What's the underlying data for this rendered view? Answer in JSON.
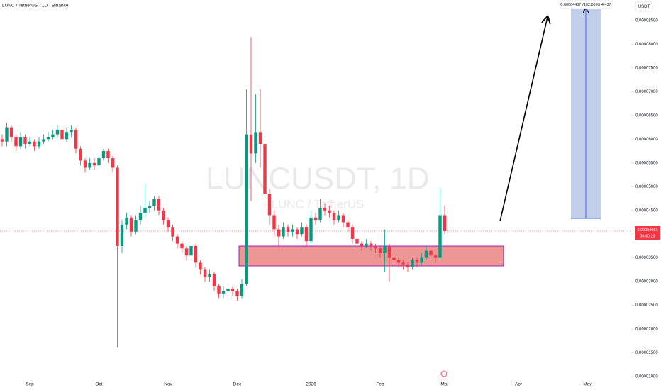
{
  "chart_data": {
    "type": "candlestick",
    "title": "LUNC / TetherUS · 1D · Binance",
    "watermark": "LUNCUSDT, 1D",
    "watermark_subtitle": "LUNC / TetherUS",
    "currency": "USDT",
    "last_price": 4.063e-05,
    "countdown": "06:40:29",
    "projection_label": "0.00004437 (102.80%) 4,437",
    "up_color": "#089981",
    "down_color": "#f23645",
    "ylim": [
      1e-05,
      8.933e-05
    ],
    "yticks": [
      {
        "value": 1e-05,
        "label": "0.00001000"
      },
      {
        "value": 1.5e-05,
        "label": "0.00001500"
      },
      {
        "value": 2e-05,
        "label": "0.00002000"
      },
      {
        "value": 2.5e-05,
        "label": "0.00002500"
      },
      {
        "value": 3e-05,
        "label": "0.00003000"
      },
      {
        "value": 3.5e-05,
        "label": "0.00003500"
      },
      {
        "value": 4e-05,
        "label": "0.00004000"
      },
      {
        "value": 4.5e-05,
        "label": "0.00004500"
      },
      {
        "value": 5e-05,
        "label": "0.00005000"
      },
      {
        "value": 5.5e-05,
        "label": "0.00005500"
      },
      {
        "value": 6e-05,
        "label": "0.00006000"
      },
      {
        "value": 6.5e-05,
        "label": "0.00006500"
      },
      {
        "value": 7e-05,
        "label": "0.00007000"
      },
      {
        "value": 7.5e-05,
        "label": "0.00007500"
      },
      {
        "value": 8e-05,
        "label": "0.00008000"
      },
      {
        "value": 8.5e-05,
        "label": "0.00008500"
      }
    ],
    "categories": [
      null,
      null,
      null,
      null,
      null,
      null,
      "Sep",
      null,
      null,
      null,
      null,
      null,
      null,
      null,
      null,
      null,
      null,
      null,
      null,
      null,
      null,
      "Oct",
      null,
      null,
      null,
      null,
      null,
      null,
      null,
      null,
      null,
      null,
      null,
      null,
      null,
      null,
      "Nov",
      null,
      null,
      null,
      null,
      null,
      null,
      null,
      null,
      null,
      null,
      null,
      null,
      null,
      null,
      "Dec",
      null,
      null,
      null,
      null,
      null,
      null,
      null,
      null,
      null,
      null,
      null,
      null,
      null,
      null,
      null,
      "2026",
      null,
      null,
      null,
      null,
      null,
      null,
      null,
      null,
      null,
      null,
      null,
      null,
      null,
      null,
      "Feb",
      null,
      null,
      null,
      null,
      null,
      null,
      null,
      null,
      null,
      null,
      null,
      null,
      null,
      "Mar",
      null,
      null,
      null,
      null,
      null,
      null,
      null,
      null,
      null,
      null,
      null,
      null,
      null,
      null,
      null,
      "Apr",
      null,
      null,
      null,
      null,
      null,
      null,
      null,
      null,
      null,
      null,
      null,
      null,
      null,
      null,
      "May",
      null,
      null,
      null,
      null,
      null,
      null,
      null,
      null,
      null,
      null,
      null,
      null,
      null,
      null,
      null
    ],
    "open": [
      6e-05,
      5.95e-05,
      6.25e-05,
      6.05e-05,
      5.85e-05,
      6.05e-05,
      5.9e-05,
      5.95e-05,
      5.85e-05,
      5.95e-05,
      6e-05,
      6.05e-05,
      6.1e-05,
      6.2e-05,
      6e-05,
      6.15e-05,
      6.2e-05,
      5.8e-05,
      5.55e-05,
      5.4e-05,
      5.5e-05,
      5.45e-05,
      5.6e-05,
      5.75e-05,
      5.6e-05,
      5.4e-05,
      3.75e-05,
      4.2e-05,
      4.35e-05,
      4.05e-05,
      4.3e-05,
      4.45e-05,
      4.55e-05,
      4.6e-05,
      4.75e-05,
      4.5e-05,
      4.3e-05,
      4.15e-05,
      3.95e-05,
      3.8e-05,
      3.7e-05,
      3.55e-05,
      3.75e-05,
      3.4e-05,
      3.25e-05,
      3.1e-05,
      3.15e-05,
      2.9e-05,
      2.75e-05,
      2.8e-05,
      2.85e-05,
      2.8e-05,
      2.7e-05,
      2.95e-05,
      6.1e-05,
      5.7e-05,
      6.15e-05,
      5.9e-05,
      4.85e-05,
      4.4e-05,
      4.1e-05,
      3.95e-05,
      4.15e-05,
      4.05e-05,
      4.1e-05,
      4e-05,
      4.15e-05,
      3.85e-05,
      4.35e-05,
      4.3e-05,
      4.55e-05,
      4.5e-05,
      4.45e-05,
      4.3e-05,
      4.4e-05,
      4.25e-05,
      4.15e-05,
      3.9e-05,
      3.8e-05,
      3.75e-05,
      3.8e-05,
      3.75e-05,
      3.7e-05,
      3.6e-05,
      3.75e-05,
      3.5e-05,
      3.45e-05,
      3.4e-05,
      3.35e-05,
      3.3e-05,
      3.45e-05,
      3.4e-05,
      3.5e-05,
      3.65e-05,
      3.55e-05,
      3.5e-05,
      4.4e-05,
      null,
      null,
      null,
      null,
      null,
      null,
      null,
      null,
      null,
      null,
      null,
      null,
      null,
      null,
      null,
      null,
      null,
      null,
      null,
      null,
      null,
      null,
      null,
      null,
      null,
      null,
      null,
      null,
      null,
      null,
      null,
      null,
      null,
      null,
      null,
      null,
      null,
      null,
      null,
      null,
      null,
      null,
      null,
      null,
      null,
      null
    ],
    "high": [
      6.1e-05,
      6.35e-05,
      6.3e-05,
      6.1e-05,
      6.15e-05,
      6.1e-05,
      6.05e-05,
      6e-05,
      6.05e-05,
      6.1e-05,
      6.15e-05,
      6.2e-05,
      6.3e-05,
      6.25e-05,
      6.25e-05,
      6.3e-05,
      6.25e-05,
      5.85e-05,
      5.6e-05,
      5.6e-05,
      5.6e-05,
      5.7e-05,
      5.8e-05,
      5.8e-05,
      5.65e-05,
      5.45e-05,
      4.3e-05,
      4.45e-05,
      4.4e-05,
      4.4e-05,
      4.6e-05,
      5.05e-05,
      4.7e-05,
      4.8e-05,
      4.8e-05,
      4.55e-05,
      4.35e-05,
      4.2e-05,
      4e-05,
      3.85e-05,
      3.75e-05,
      3.85e-05,
      3.8e-05,
      3.45e-05,
      3.3e-05,
      3.25e-05,
      3.2e-05,
      2.95e-05,
      2.9e-05,
      2.95e-05,
      2.9e-05,
      2.85e-05,
      3.05e-05,
      7.05e-05,
      8.15e-05,
      6.95e-05,
      7.05e-05,
      6e-05,
      4.95e-05,
      4.5e-05,
      4.2e-05,
      4.25e-05,
      4.2e-05,
      4.2e-05,
      4.15e-05,
      4.25e-05,
      4.2e-05,
      4.5e-05,
      4.45e-05,
      4.75e-05,
      4.65e-05,
      4.6e-05,
      4.5e-05,
      4.5e-05,
      4.45e-05,
      4.3e-05,
      4.2e-05,
      3.95e-05,
      3.85e-05,
      3.9e-05,
      3.85e-05,
      3.8e-05,
      3.75e-05,
      4.1e-05,
      3.8e-05,
      3.6e-05,
      3.5e-05,
      3.45e-05,
      3.4e-05,
      3.5e-05,
      3.5e-05,
      3.6e-05,
      3.75e-05,
      3.7e-05,
      3.6e-05,
      4.97e-05,
      4.6e-05,
      null,
      null,
      null,
      null,
      null,
      null,
      null,
      null,
      null,
      null,
      null,
      null,
      null,
      null,
      null,
      null,
      null,
      null,
      null,
      null,
      null,
      null,
      null,
      null,
      null,
      null,
      null,
      null,
      null,
      null,
      null,
      null,
      null,
      null,
      null,
      null,
      null,
      null,
      null,
      null,
      null,
      null,
      null,
      null,
      null,
      null
    ],
    "low": [
      5.85e-05,
      5.85e-05,
      5.95e-05,
      5.75e-05,
      5.8e-05,
      5.8e-05,
      5.85e-05,
      5.75e-05,
      5.8e-05,
      5.9e-05,
      5.95e-05,
      6e-05,
      6.05e-05,
      5.9e-05,
      5.95e-05,
      6.05e-05,
      5.7e-05,
      5.45e-05,
      5.3e-05,
      5.35e-05,
      5.35e-05,
      5.4e-05,
      5.55e-05,
      5.5e-05,
      5.3e-05,
      1.61e-05,
      3.6e-05,
      4.1e-05,
      3.95e-05,
      4e-05,
      4.2e-05,
      4.35e-05,
      4.45e-05,
      4.5e-05,
      4.4e-05,
      4.2e-05,
      4.05e-05,
      3.85e-05,
      3.7e-05,
      3.6e-05,
      3.45e-05,
      3.5e-05,
      3.3e-05,
      3.15e-05,
      3e-05,
      3e-05,
      2.8e-05,
      2.65e-05,
      2.65e-05,
      2.7e-05,
      2.7e-05,
      2.6e-05,
      2.65e-05,
      2.9e-05,
      4.7e-05,
      5.5e-05,
      5.4e-05,
      4.6e-05,
      4.2e-05,
      3.95e-05,
      3.75e-05,
      3.9e-05,
      3.95e-05,
      3.95e-05,
      3.9e-05,
      3.95e-05,
      3.75e-05,
      3.8e-05,
      4.2e-05,
      4.25e-05,
      4.4e-05,
      4.35e-05,
      4.2e-05,
      4.25e-05,
      4.15e-05,
      4.05e-05,
      3.8e-05,
      3.7e-05,
      3.65e-05,
      3.7e-05,
      3.65e-05,
      3.6e-05,
      3.5e-05,
      3.2e-05,
      3e-05,
      3.35e-05,
      3.3e-05,
      3.25e-05,
      3.2e-05,
      3.25e-05,
      3.3e-05,
      3.35e-05,
      3.45e-05,
      3.45e-05,
      3.4e-05,
      3.45e-05,
      4e-05,
      null,
      null,
      null,
      null,
      null,
      null,
      null,
      null,
      null,
      null,
      null,
      null,
      null,
      null,
      null,
      null,
      null,
      null,
      null,
      null,
      null,
      null,
      null,
      null,
      null,
      null,
      null,
      null,
      null,
      null,
      null,
      null,
      null,
      null,
      null,
      null,
      null,
      null,
      null,
      null,
      null,
      null,
      null,
      null,
      null,
      null
    ],
    "close": [
      5.95e-05,
      6.25e-05,
      6.05e-05,
      5.85e-05,
      6.05e-05,
      5.9e-05,
      5.95e-05,
      5.85e-05,
      5.95e-05,
      6e-05,
      6.05e-05,
      6.1e-05,
      6.2e-05,
      6e-05,
      6.15e-05,
      6.2e-05,
      5.8e-05,
      5.55e-05,
      5.4e-05,
      5.5e-05,
      5.45e-05,
      5.6e-05,
      5.75e-05,
      5.6e-05,
      5.4e-05,
      3.75e-05,
      4.2e-05,
      4.35e-05,
      4.05e-05,
      4.3e-05,
      4.45e-05,
      4.55e-05,
      4.6e-05,
      4.75e-05,
      4.5e-05,
      4.3e-05,
      4.15e-05,
      3.95e-05,
      3.8e-05,
      3.7e-05,
      3.55e-05,
      3.75e-05,
      3.4e-05,
      3.25e-05,
      3.1e-05,
      3.15e-05,
      2.9e-05,
      2.75e-05,
      2.8e-05,
      2.85e-05,
      2.8e-05,
      2.7e-05,
      2.95e-05,
      6.1e-05,
      5.7e-05,
      6.15e-05,
      5.9e-05,
      4.85e-05,
      4.4e-05,
      4.1e-05,
      3.95e-05,
      4.15e-05,
      4.05e-05,
      4.1e-05,
      4e-05,
      4.15e-05,
      3.85e-05,
      4.35e-05,
      4.3e-05,
      4.55e-05,
      4.5e-05,
      4.45e-05,
      4.3e-05,
      4.4e-05,
      4.25e-05,
      4.15e-05,
      3.9e-05,
      3.8e-05,
      3.75e-05,
      3.8e-05,
      3.75e-05,
      3.7e-05,
      3.6e-05,
      3.75e-05,
      3.5e-05,
      3.45e-05,
      3.4e-05,
      3.35e-05,
      3.3e-05,
      3.45e-05,
      3.4e-05,
      3.5e-05,
      3.65e-05,
      3.55e-05,
      3.5e-05,
      4.4e-05,
      4.063e-05,
      null,
      null,
      null,
      null,
      null,
      null,
      null,
      null,
      null,
      null,
      null,
      null,
      null,
      null,
      null,
      null,
      null,
      null,
      null,
      null,
      null,
      null,
      null,
      null,
      null,
      null,
      null,
      null,
      null,
      null,
      null,
      null,
      null,
      null,
      null,
      null,
      null,
      null,
      null,
      null,
      null,
      null,
      null,
      null,
      null,
      null
    ]
  }
}
